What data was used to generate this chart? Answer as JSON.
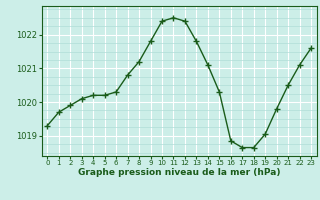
{
  "x": [
    0,
    1,
    2,
    3,
    4,
    5,
    6,
    7,
    8,
    9,
    10,
    11,
    12,
    13,
    14,
    15,
    16,
    17,
    18,
    19,
    20,
    21,
    22,
    23
  ],
  "y": [
    1019.3,
    1019.7,
    1019.9,
    1020.1,
    1020.2,
    1020.2,
    1020.3,
    1020.8,
    1021.2,
    1021.8,
    1022.4,
    1022.5,
    1022.4,
    1021.8,
    1021.1,
    1020.3,
    1018.85,
    1018.65,
    1018.65,
    1019.05,
    1019.8,
    1020.5,
    1021.1,
    1021.6
  ],
  "bg_color": "#cceee8",
  "line_color": "#1a5c1a",
  "marker_color": "#1a5c1a",
  "grid_color_major": "#ffffff",
  "grid_color_minor": "#b0ddd8",
  "xlabel": "Graphe pression niveau de la mer (hPa)",
  "xlabel_color": "#1a5c1a",
  "ylabel_ticks": [
    1019,
    1020,
    1021,
    1022
  ],
  "ylim": [
    1018.4,
    1022.85
  ],
  "xlim": [
    -0.5,
    23.5
  ],
  "axis_color": "#1a5c1a",
  "tick_color": "#1a5c1a",
  "xticklabels": [
    "0",
    "1",
    "2",
    "3",
    "4",
    "5",
    "6",
    "7",
    "8",
    "9",
    "10",
    "11",
    "12",
    "13",
    "14",
    "15",
    "16",
    "17",
    "18",
    "19",
    "20",
    "21",
    "22",
    "23"
  ]
}
